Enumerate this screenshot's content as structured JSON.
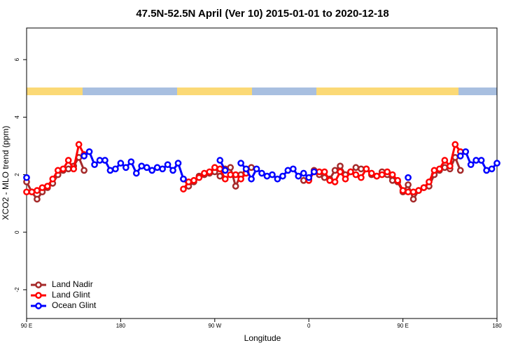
{
  "chart_data": {
    "type": "line",
    "title": "47.5N-52.5N April (Ver 10)   2015-01-01 to 2020-12-18",
    "xlabel": "Longitude",
    "ylabel": "XCO2 - MLO trend (ppm)",
    "xlim": [
      90,
      540
    ],
    "ylim": [
      -3.0,
      7.1
    ],
    "xticks": [
      {
        "value": 90,
        "label": "90 E"
      },
      180,
      {
        "value": 270,
        "label": "90 W"
      },
      {
        "value": 360,
        "label": "0"
      },
      {
        "value": 450,
        "label": "90 E"
      },
      {
        "value": 540,
        "label": "180"
      }
    ],
    "yticks": [
      -2,
      0,
      2,
      4,
      6
    ],
    "legend": "bottom-left",
    "series": [
      {
        "name": "Land Nadir",
        "color": "#a52a2a",
        "x": [
          90,
          95,
          100,
          105,
          110,
          115,
          120,
          125,
          130,
          135,
          140,
          145,
          150,
          240,
          245,
          250,
          255,
          260,
          265,
          270,
          275,
          280,
          285,
          290,
          295,
          300,
          305,
          310,
          355,
          360,
          365,
          370,
          375,
          380,
          385,
          390,
          395,
          400,
          405,
          410,
          415,
          420,
          425,
          430,
          435,
          440,
          445,
          450,
          455,
          460,
          465,
          470,
          475,
          480,
          485,
          490,
          495,
          500,
          505
        ],
        "values": [
          1.75,
          1.4,
          1.15,
          1.4,
          1.55,
          1.7,
          2.0,
          2.15,
          2.2,
          2.3,
          2.6,
          2.15,
          null,
          1.85,
          1.6,
          1.75,
          1.95,
          2.0,
          2.05,
          2.1,
          1.95,
          2.2,
          2.25,
          1.6,
          2.0,
          2.1,
          2.25,
          null,
          1.8,
          1.85,
          2.15,
          2.0,
          1.9,
          1.85,
          2.15,
          2.3,
          2.0,
          2.1,
          2.25,
          2.2,
          2.2,
          2.0,
          1.95,
          2.1,
          2.0,
          1.8,
          1.75,
          1.4,
          1.65,
          1.15,
          1.45,
          1.55,
          1.6,
          2.0,
          2.15,
          2.25,
          2.2,
          2.6,
          2.15
        ]
      },
      {
        "name": "Land Glint",
        "color": "#ff0000",
        "x": [
          90,
          95,
          100,
          105,
          110,
          115,
          120,
          125,
          130,
          135,
          140,
          145,
          150,
          240,
          245,
          250,
          255,
          260,
          265,
          270,
          275,
          280,
          285,
          290,
          295,
          300,
          305,
          360,
          365,
          370,
          375,
          380,
          385,
          390,
          395,
          400,
          405,
          410,
          415,
          420,
          425,
          430,
          435,
          440,
          445,
          450,
          455,
          460,
          465,
          470,
          475,
          480,
          485,
          490,
          495,
          500,
          505
        ],
        "values": [
          1.4,
          1.4,
          1.45,
          1.55,
          1.6,
          1.85,
          2.15,
          2.2,
          2.5,
          2.2,
          3.05,
          2.7,
          null,
          1.5,
          1.75,
          1.8,
          1.9,
          2.05,
          2.1,
          2.25,
          2.2,
          1.85,
          2.0,
          2.0,
          1.85,
          2.05,
          null,
          1.8,
          2.1,
          2.1,
          2.1,
          1.8,
          1.75,
          2.1,
          1.85,
          2.1,
          2.0,
          1.9,
          2.2,
          2.05,
          1.95,
          2.0,
          2.1,
          2.0,
          1.8,
          1.45,
          1.4,
          1.4,
          1.45,
          1.55,
          1.75,
          2.15,
          2.2,
          2.5,
          2.3,
          3.05,
          2.8
        ]
      },
      {
        "name": "Ocean Glint",
        "color": "#0000ff",
        "x": [
          90,
          95,
          145,
          150,
          155,
          160,
          165,
          170,
          175,
          180,
          185,
          190,
          195,
          200,
          205,
          210,
          215,
          220,
          225,
          230,
          235,
          240,
          245,
          275,
          280,
          285,
          295,
          300,
          305,
          310,
          315,
          320,
          325,
          330,
          335,
          340,
          345,
          350,
          355,
          360,
          365,
          370,
          455,
          460,
          505,
          510,
          515,
          520,
          525,
          530,
          535,
          540
        ],
        "values": [
          1.9,
          null,
          2.65,
          2.8,
          2.35,
          2.5,
          2.5,
          2.15,
          2.2,
          2.4,
          2.25,
          2.45,
          2.05,
          2.3,
          2.25,
          2.15,
          2.25,
          2.2,
          2.35,
          2.15,
          2.4,
          1.85,
          null,
          2.5,
          2.15,
          null,
          2.4,
          2.2,
          1.85,
          2.2,
          2.05,
          1.95,
          2.0,
          1.85,
          1.95,
          2.15,
          2.2,
          1.95,
          2.05,
          1.9,
          2.1,
          null,
          1.9,
          null,
          2.65,
          2.8,
          2.35,
          2.5,
          2.5,
          2.15,
          2.2,
          2.4
        ]
      }
    ]
  }
}
